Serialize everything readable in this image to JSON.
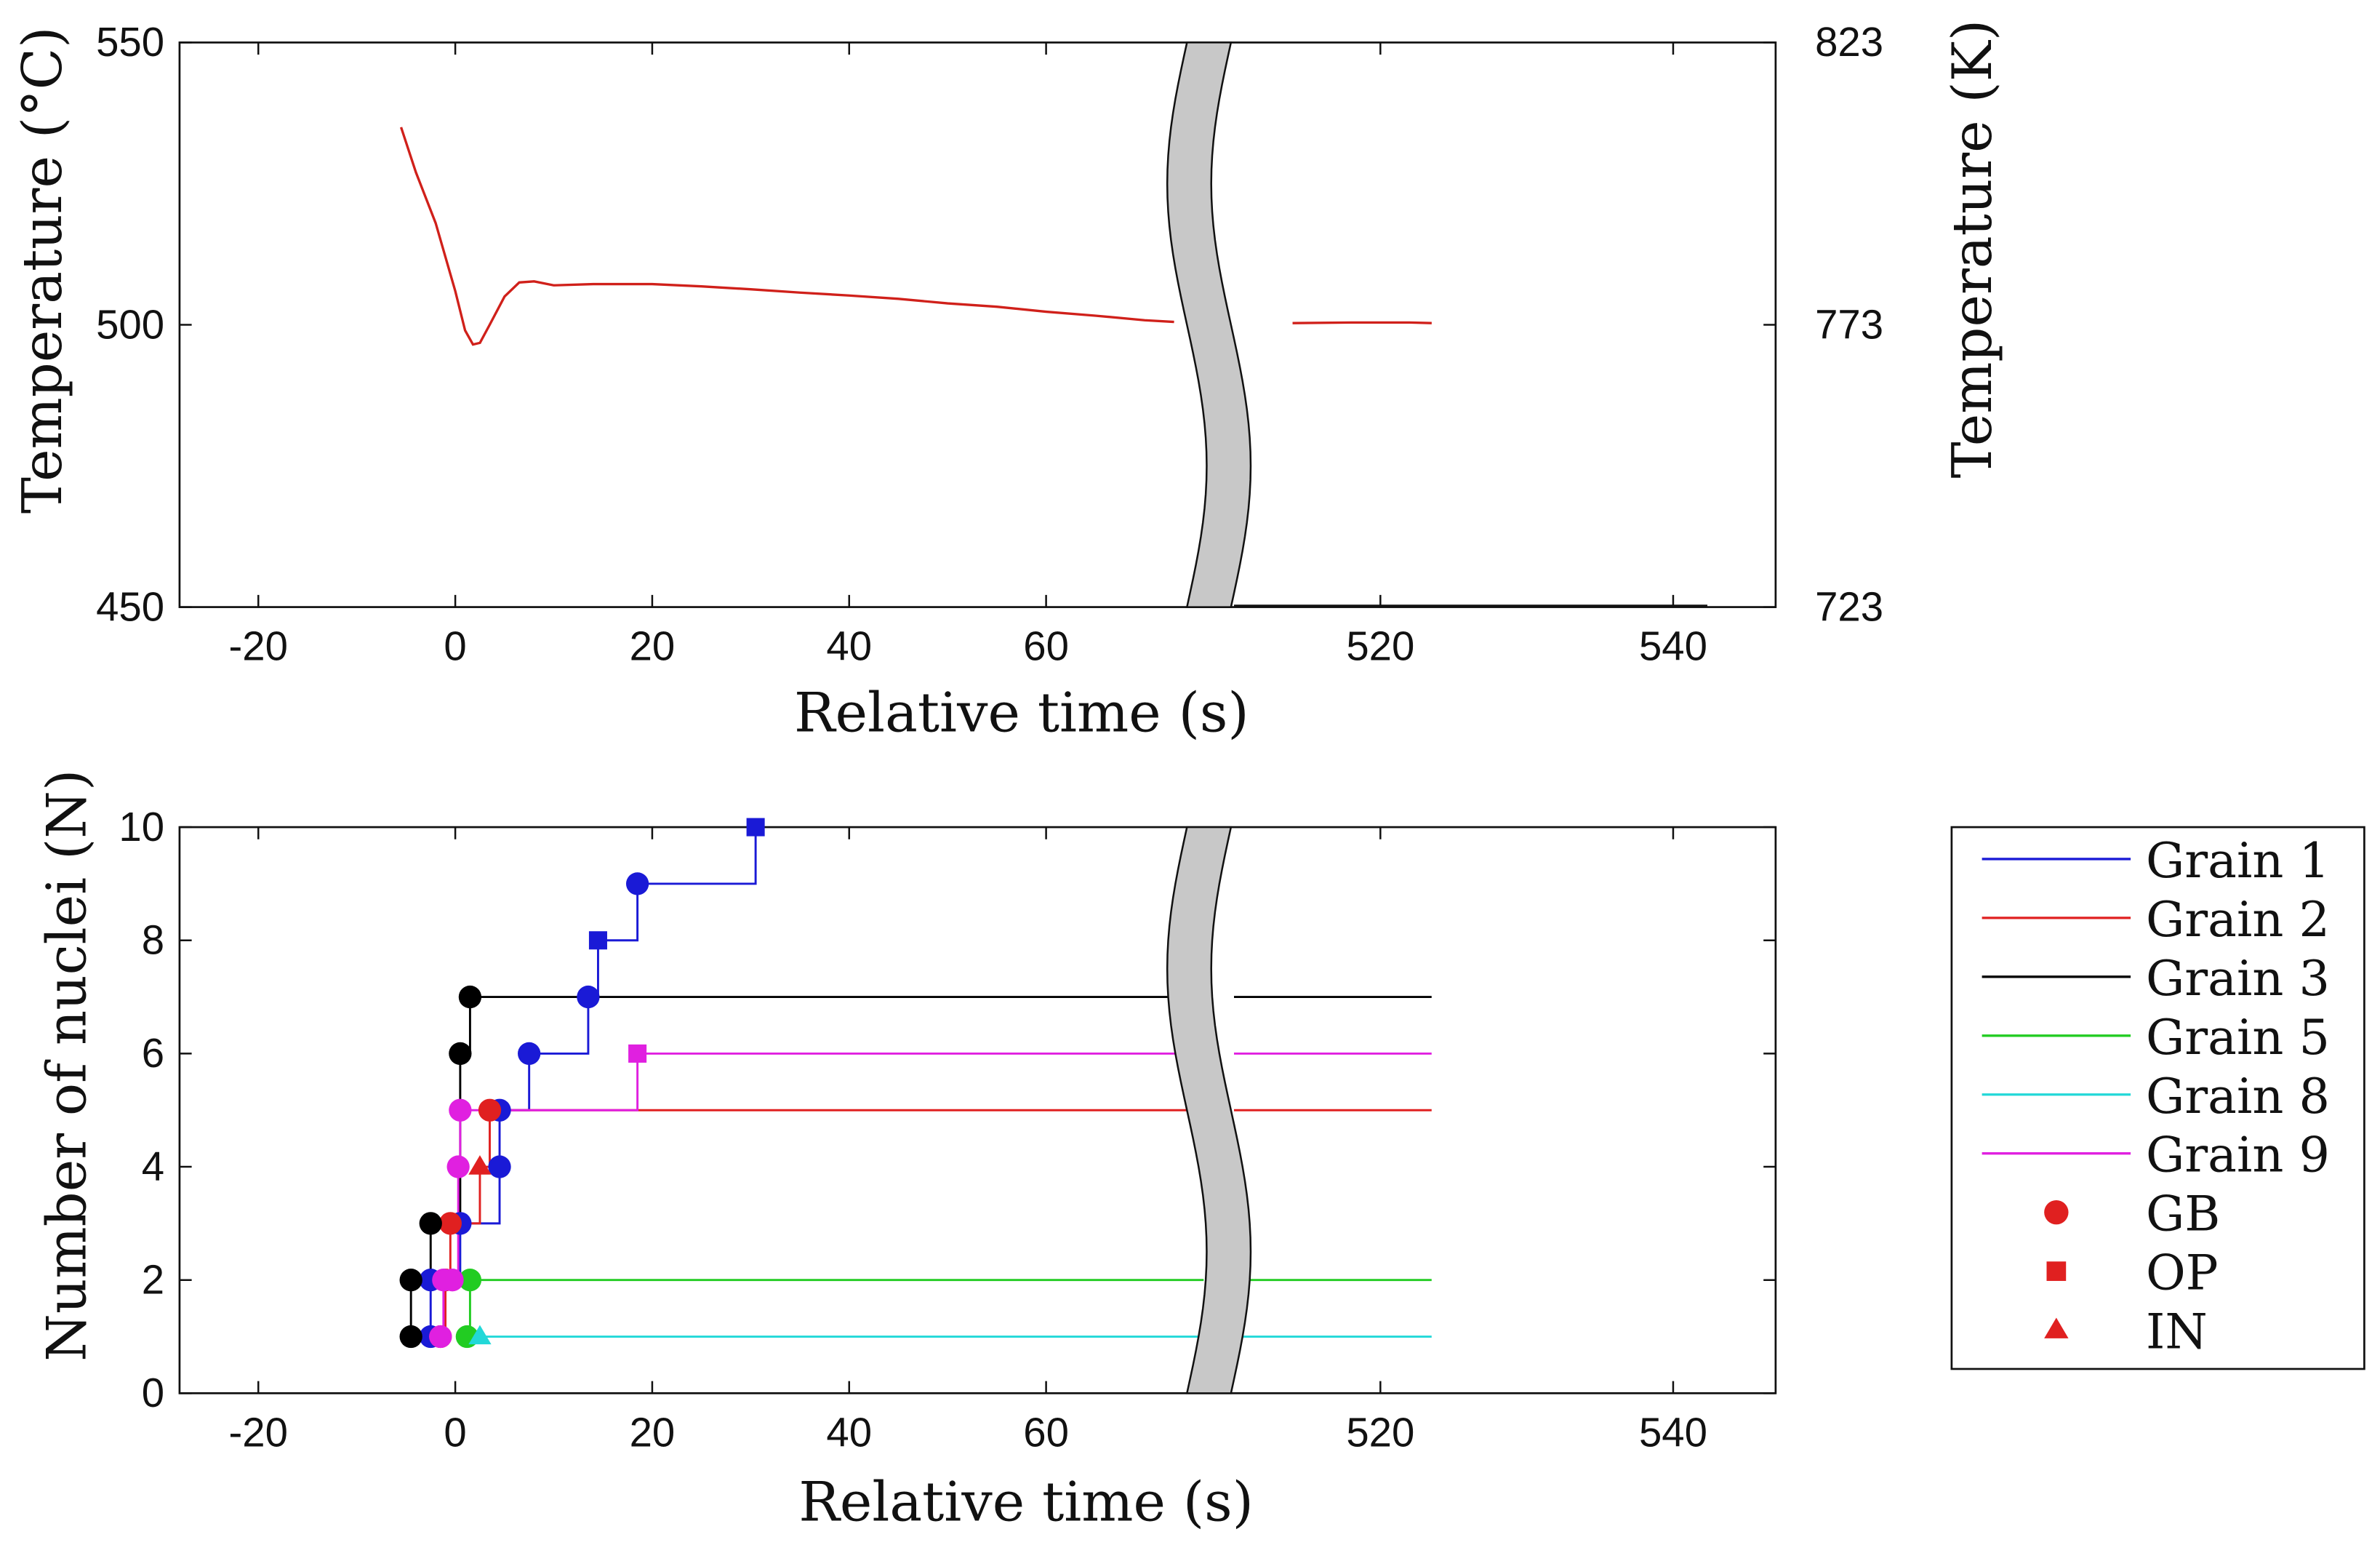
{
  "chart_data": [
    {
      "type": "line",
      "title": "",
      "xlabel": "Relative time (s)",
      "ylabel": "Temperature (°C)",
      "ylabel_right": "Temperature (K)",
      "ylim": [
        450,
        550
      ],
      "yticks": [
        450,
        500,
        550
      ],
      "yticks_right": [
        723,
        773,
        823
      ],
      "x_axis_break": {
        "left_segment": [
          -28,
          76
        ],
        "right_segment": [
          510,
          547
        ]
      },
      "xtick_labels": [
        "-20",
        "0",
        "20",
        "40",
        "60",
        "520",
        "540"
      ],
      "series": [
        {
          "name": "Temperature",
          "color": "#d0201a",
          "points": [
            [
              -5.5,
              535
            ],
            [
              -4,
              527
            ],
            [
              -2,
              518
            ],
            [
              0,
              506
            ],
            [
              1,
              499
            ],
            [
              1.8,
              496.5
            ],
            [
              2.5,
              496.8
            ],
            [
              3.5,
              500
            ],
            [
              5,
              505
            ],
            [
              6.5,
              507.5
            ],
            [
              8,
              507.7
            ],
            [
              10,
              507
            ],
            [
              14,
              507.2
            ],
            [
              20,
              507.2
            ],
            [
              25,
              506.8
            ],
            [
              30,
              506.3
            ],
            [
              35,
              505.7
            ],
            [
              40,
              505.2
            ],
            [
              45,
              504.6
            ],
            [
              50,
              503.8
            ],
            [
              55,
              503.2
            ],
            [
              60,
              502.3
            ],
            [
              65,
              501.6
            ],
            [
              70,
              500.8
            ],
            [
              73,
              500.5
            ],
            [
              514,
              500.3
            ],
            [
              518,
              500.4
            ],
            [
              522,
              500.4
            ],
            [
              523.5,
              500.3
            ]
          ]
        }
      ]
    },
    {
      "type": "line",
      "step": true,
      "title": "",
      "xlabel": "Relative time (s)",
      "ylabel": "Number of nuclei (N)",
      "ylim": [
        0,
        10
      ],
      "yticks": [
        0,
        2,
        4,
        6,
        8,
        10
      ],
      "x_axis_break": {
        "left_segment": [
          -28,
          76
        ],
        "right_segment": [
          510,
          547
        ]
      },
      "xtick_labels": [
        "-20",
        "0",
        "20",
        "40",
        "60",
        "520",
        "540"
      ],
      "legend_position": "right",
      "end_x": 523.5,
      "series": [
        {
          "name": "Grain 1",
          "color": "#1a1ad6",
          "points": [
            {
              "x": -2.5,
              "y": 1,
              "m": "GB"
            },
            {
              "x": -2.5,
              "y": 2,
              "m": "GB"
            },
            {
              "x": 0.5,
              "y": 3,
              "m": "GB"
            },
            {
              "x": 4.5,
              "y": 4,
              "m": "GB"
            },
            {
              "x": 4.5,
              "y": 5,
              "m": "GB"
            },
            {
              "x": 7.5,
              "y": 6,
              "m": "GB"
            },
            {
              "x": 13.5,
              "y": 7,
              "m": "GB"
            },
            {
              "x": 14.5,
              "y": 8,
              "m": "OP"
            },
            {
              "x": 18.5,
              "y": 9,
              "m": "GB"
            },
            {
              "x": 30.5,
              "y": 10,
              "m": "OP"
            }
          ]
        },
        {
          "name": "Grain 2",
          "color": "#e02020",
          "points": [
            {
              "x": -1.5,
              "y": 1,
              "m": "GB"
            },
            {
              "x": -1,
              "y": 2,
              "m": "GB"
            },
            {
              "x": -0.5,
              "y": 3,
              "m": "GB"
            },
            {
              "x": 2.5,
              "y": 4,
              "m": "IN"
            },
            {
              "x": 3.5,
              "y": 5,
              "m": "GB"
            }
          ]
        },
        {
          "name": "Grain 3",
          "color": "#000000",
          "points": [
            {
              "x": -4.5,
              "y": 1,
              "m": "GB"
            },
            {
              "x": -4.5,
              "y": 2,
              "m": "GB"
            },
            {
              "x": -2.5,
              "y": 3,
              "m": "GB"
            },
            {
              "x": 0.5,
              "y": 6,
              "m": "GB"
            },
            {
              "x": 1.5,
              "y": 7,
              "m": "GB"
            }
          ]
        },
        {
          "name": "Grain 5",
          "color": "#22cc22",
          "points": [
            {
              "x": 1.2,
              "y": 1,
              "m": "GB"
            },
            {
              "x": 1.5,
              "y": 2,
              "m": "GB"
            }
          ]
        },
        {
          "name": "Grain 8",
          "color": "#22d8d8",
          "points": [
            {
              "x": 2.5,
              "y": 1,
              "m": "IN"
            }
          ]
        },
        {
          "name": "Grain 9",
          "color": "#e020e0",
          "points": [
            {
              "x": -1.5,
              "y": 1,
              "m": "GB"
            },
            {
              "x": -1.2,
              "y": 2,
              "m": "GB"
            },
            {
              "x": -0.3,
              "y": 2,
              "m": "GB"
            },
            {
              "x": 0.3,
              "y": 4,
              "m": "GB"
            },
            {
              "x": 0.5,
              "y": 5,
              "m": "GB"
            },
            {
              "x": 18.5,
              "y": 6,
              "m": "OP"
            }
          ]
        }
      ],
      "marker_legend": [
        {
          "symbol": "GB",
          "label": "GB"
        },
        {
          "symbol": "OP",
          "label": "OP"
        },
        {
          "symbol": "IN",
          "label": "IN"
        }
      ]
    }
  ]
}
